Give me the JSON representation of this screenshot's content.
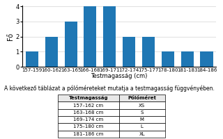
{
  "chart_data": {
    "type": "bar",
    "categories": [
      "157-159",
      "160-162",
      "163-165",
      "166-168",
      "169-171",
      "172-174",
      "175-177",
      "178-180",
      "181-183",
      "184-186"
    ],
    "values": [
      1,
      2,
      3,
      4,
      4,
      2,
      2,
      1,
      1,
      1
    ],
    "x_label": "Testmagasság (cm)",
    "y_label": "Fő",
    "ylim": [
      0,
      4.05
    ],
    "yticks": [
      0,
      1,
      2,
      3,
      4
    ],
    "grid": true,
    "annotations": [
      "A következő táblázat a pólóméreteket mutatja a testmagasság függvényében."
    ],
    "table": {
      "header": [
        "Testmagasság",
        "Pólóméret"
      ],
      "rows": [
        [
          "157–162 cm",
          "XS"
        ],
        [
          "163–168 cm",
          "S"
        ],
        [
          "169–174 cm",
          "M"
        ],
        [
          "175–180 cm",
          "L"
        ],
        [
          "181–186 cm",
          "XL"
        ]
      ]
    }
  }
}
